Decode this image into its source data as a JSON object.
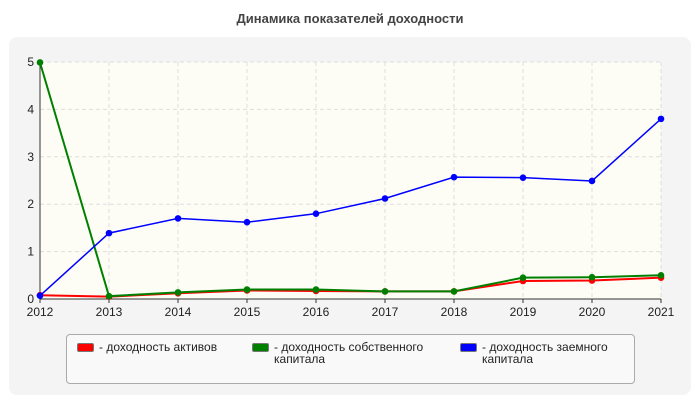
{
  "chart_data": {
    "type": "line",
    "title": "Динамика показателей доходности",
    "xlabel": "",
    "ylabel": "",
    "categories": [
      "2012",
      "2013",
      "2014",
      "2015",
      "2016",
      "2017",
      "2018",
      "2019",
      "2020",
      "2021"
    ],
    "ylim": [
      0,
      5
    ],
    "yticks": [
      "0",
      "1",
      "2",
      "3",
      "4",
      "5"
    ],
    "grid": true,
    "legend_position": "bottom",
    "series": [
      {
        "name": "доходность активов",
        "color": "#ff0000",
        "values": [
          0.08,
          0.05,
          0.12,
          0.18,
          0.17,
          0.16,
          0.16,
          0.38,
          0.39,
          0.45
        ]
      },
      {
        "name": "доходность собственного капитала",
        "color": "#008000",
        "values": [
          4.99,
          0.06,
          0.14,
          0.2,
          0.2,
          0.16,
          0.16,
          0.45,
          0.46,
          0.5
        ]
      },
      {
        "name": "доходность заемного капитала",
        "color": "#0000ff",
        "values": [
          0.07,
          1.39,
          1.7,
          1.62,
          1.8,
          2.12,
          2.57,
          2.56,
          2.49,
          3.8
        ]
      }
    ]
  },
  "legend": {
    "items": [
      {
        "label": "- доходность активов",
        "color": "#ff0000"
      },
      {
        "label": "- доходность собственного\nкапитала",
        "color": "#008000"
      },
      {
        "label": "- доходность заемного\nкапитала",
        "color": "#0000ff"
      }
    ]
  }
}
